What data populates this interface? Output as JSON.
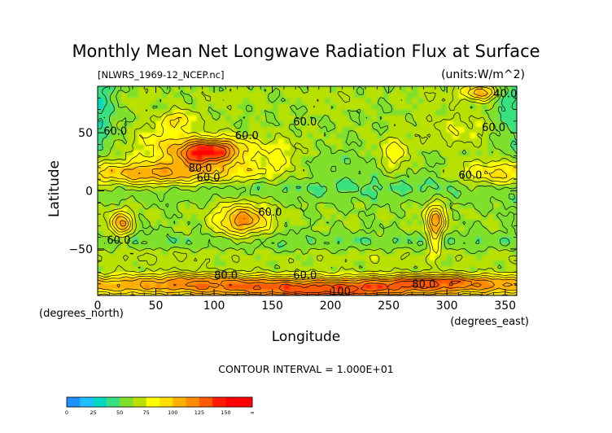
{
  "chart_data": {
    "type": "heatmap",
    "title": "Monthly Mean Net Longwave Radiation Flux at Surface",
    "subtitle_left": "[NLWRS_1969-12_NCEP.nc]",
    "subtitle_right": "(units:W/m^2)",
    "xlabel": "Longitude",
    "ylabel": "Latitude",
    "x_unit_label": "(degrees_east)",
    "y_unit_label": "(degrees_north)",
    "xlim": [
      0,
      360
    ],
    "ylim": [
      -90,
      90
    ],
    "x_ticks": [
      0,
      50,
      100,
      150,
      200,
      250,
      300,
      350
    ],
    "y_ticks": [
      50,
      0,
      -50
    ],
    "contour_interval_text": "CONTOUR INTERVAL = 1.000E+01",
    "contour_labels": [
      {
        "text": "40.0",
        "lon": 340,
        "lat": 84
      },
      {
        "text": "60.0",
        "lon": 5,
        "lat": 52
      },
      {
        "text": "60.0",
        "lon": 168,
        "lat": 60
      },
      {
        "text": "60.0",
        "lon": 330,
        "lat": 55
      },
      {
        "text": "60.0",
        "lon": 118,
        "lat": 48
      },
      {
        "text": "80.0",
        "lon": 78,
        "lat": 20
      },
      {
        "text": "60.0",
        "lon": 85,
        "lat": 12
      },
      {
        "text": "60.0",
        "lon": 310,
        "lat": 14
      },
      {
        "text": "60.0",
        "lon": 138,
        "lat": -18
      },
      {
        "text": "60.0",
        "lon": 8,
        "lat": -42
      },
      {
        "text": "80.0",
        "lon": 100,
        "lat": -72
      },
      {
        "text": "60.0",
        "lon": 168,
        "lat": -72
      },
      {
        "text": "80.0",
        "lon": 270,
        "lat": -80
      },
      {
        "text": "100",
        "lon": 200,
        "lat": -86
      }
    ],
    "colorbar": {
      "levels": [
        "0",
        "25",
        "50",
        "75",
        "100",
        "125",
        "150",
        "∞"
      ],
      "colors": [
        "#1e90ff",
        "#1fbfff",
        "#00d9c0",
        "#39e07f",
        "#7ee02b",
        "#b8e000",
        "#ffff00",
        "#ffe000",
        "#ffb000",
        "#ff8c00",
        "#ff5a00",
        "#ff1a00",
        "#ff0000",
        "#ff0000"
      ]
    }
  }
}
